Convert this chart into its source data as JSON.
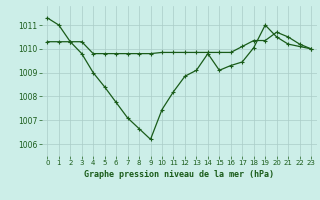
{
  "title": "Graphe pression niveau de la mer (hPa)",
  "background_color": "#cceee8",
  "grid_color": "#aaccc8",
  "line_color": "#1a5c1a",
  "xlim": [
    -0.5,
    23.5
  ],
  "ylim": [
    1005.5,
    1011.8
  ],
  "yticks": [
    1006,
    1007,
    1008,
    1009,
    1010,
    1011
  ],
  "xticks": [
    0,
    1,
    2,
    3,
    4,
    5,
    6,
    7,
    8,
    9,
    10,
    11,
    12,
    13,
    14,
    15,
    16,
    17,
    18,
    19,
    20,
    21,
    22,
    23
  ],
  "series_main": [
    1011.3,
    1011.0,
    1010.3,
    1009.8,
    1009.0,
    1008.4,
    1007.75,
    1007.1,
    1006.65,
    1006.2,
    1007.45,
    1008.2,
    1008.85,
    1009.1,
    1009.8,
    1009.1,
    1009.3,
    1009.45,
    1010.05,
    1011.0,
    1010.5,
    1010.2,
    1010.1,
    1010.0
  ],
  "series_flat": [
    1010.3,
    1010.3,
    1010.3,
    1010.3,
    1009.8,
    1009.8,
    1009.8,
    1009.8,
    1009.8,
    1009.8,
    1009.85,
    1009.85,
    1009.85,
    1009.85,
    1009.85,
    1009.85,
    1009.85,
    1010.1,
    1010.35,
    1010.35,
    1010.7,
    1010.5,
    1010.2,
    1010.0
  ],
  "ylabel_fontsize": 5.5,
  "xlabel_fontsize": 6.0,
  "tick_fontsize": 5.0
}
